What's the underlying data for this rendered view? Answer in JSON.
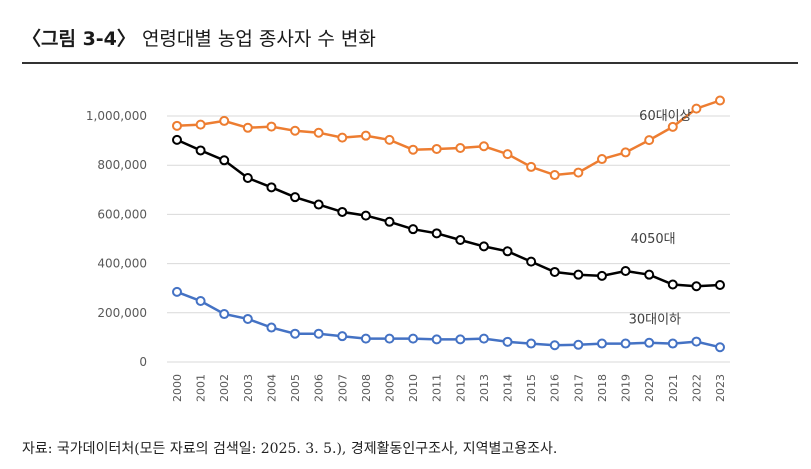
{
  "header": {
    "tag": "〈그림 3-4〉",
    "title": "연령대별 농업 종사자 수 변화"
  },
  "source": "자료: 국가데이터처(모든 자료의 검색일: 2025. 3. 5.), 경제활동인구조사, 지역별고용조사.",
  "colors": {
    "60plus": "#ED7D31",
    "40s50s": "#000000",
    "30s_under": "#4472C4",
    "grid": "#D9D9D9",
    "axis_text": "#595959"
  },
  "chart_data": {
    "type": "line",
    "x": [
      "2000",
      "2001",
      "2002",
      "2003",
      "2004",
      "2005",
      "2006",
      "2007",
      "2008",
      "2009",
      "2010",
      "2011",
      "2012",
      "2013",
      "2014",
      "2015",
      "2016",
      "2017",
      "2018",
      "2019",
      "2020",
      "2021",
      "2022",
      "2023"
    ],
    "ylim": [
      0,
      1000000
    ],
    "yticks": [
      0,
      200000,
      400000,
      600000,
      800000,
      1000000
    ],
    "ytick_labels": [
      "0",
      "200,000",
      "400,000",
      "600,000",
      "800,000",
      "1,000,000"
    ],
    "grid": true,
    "legend": "inline labels",
    "series": [
      {
        "name": "60대이상",
        "color_key": "60plus",
        "values": [
          960000,
          965000,
          980000,
          952000,
          957000,
          940000,
          932000,
          912000,
          920000,
          903000,
          863000,
          866000,
          870000,
          877000,
          845000,
          793000,
          760000,
          770000,
          825000,
          852000,
          902000,
          956000,
          1030000,
          1063000
        ]
      },
      {
        "name": "4050대",
        "color_key": "40s50s",
        "values": [
          903000,
          860000,
          820000,
          748000,
          710000,
          670000,
          640000,
          610000,
          595000,
          570000,
          540000,
          523000,
          496000,
          470000,
          450000,
          408000,
          366000,
          355000,
          350000,
          370000,
          355000,
          315000,
          308000,
          313000
        ]
      },
      {
        "name": "30대이하",
        "color_key": "30s_under",
        "values": [
          285000,
          248000,
          195000,
          175000,
          140000,
          115000,
          115000,
          105000,
          95000,
          95000,
          95000,
          92000,
          92000,
          95000,
          82000,
          75000,
          68000,
          70000,
          75000,
          75000,
          78000,
          75000,
          83000,
          60000
        ]
      }
    ]
  }
}
